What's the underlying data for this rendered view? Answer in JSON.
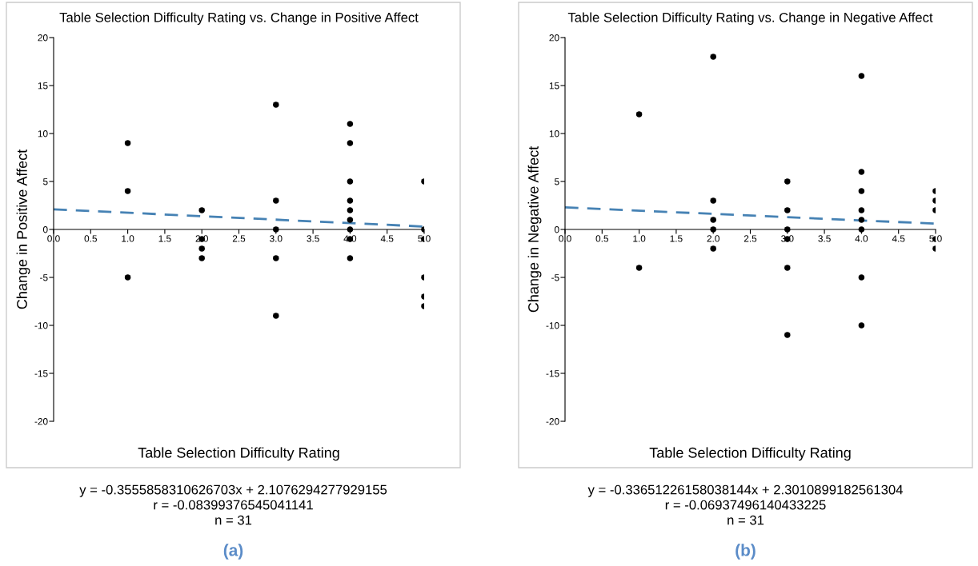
{
  "chart_data": [
    {
      "type": "scatter",
      "title": "Table Selection Difficulty Rating vs. Change in Positive Affect",
      "xlabel": "Table Selection Difficulty Rating",
      "ylabel": "Change in Positive Affect",
      "series": [
        {
          "marker": "circle",
          "color": "#000000",
          "x": [
            1,
            1,
            1,
            2,
            2,
            2,
            2,
            3,
            3,
            3,
            3,
            3,
            4,
            4,
            4,
            4,
            4,
            4,
            4,
            4,
            4,
            5,
            5,
            5,
            5,
            5,
            5
          ],
          "values": [
            9,
            4,
            -5,
            2,
            -1,
            -2,
            -3,
            13,
            3,
            0,
            -3,
            -9,
            11,
            9,
            5,
            3,
            2,
            1,
            0,
            -1,
            -3,
            5,
            0,
            -1,
            -5,
            -7,
            -8
          ]
        },
        {
          "type": "line",
          "color": "#4682b4",
          "line_style": "dashed",
          "x": [
            0,
            5
          ],
          "values": [
            2.1,
            0.3
          ]
        }
      ],
      "xlim": [
        0,
        5
      ],
      "ylim": [
        -20,
        20
      ],
      "xticks": [
        {
          "value": 0,
          "label": "0.0"
        },
        0.5,
        {
          "value": 1,
          "label": "1.0"
        },
        1.5,
        {
          "value": 2,
          "label": "2.0"
        },
        2.5,
        {
          "value": 3,
          "label": "3.0"
        },
        3.5,
        {
          "value": 4,
          "label": "4.0"
        },
        4.5,
        {
          "value": 5,
          "label": "5.0"
        }
      ],
      "yticks": [
        -20,
        -15,
        -10,
        -5,
        0,
        5,
        10,
        15,
        20
      ],
      "grid": false,
      "annotations": [
        "y = -0.3555858310626703x + 2.1076294277929155",
        "r = -0.08399376545041141",
        "n = 31",
        "(a)"
      ]
    },
    {
      "type": "scatter",
      "title": "Table Selection Difficulty Rating vs. Change in Negative Affect",
      "xlabel": "Table Selection Difficulty Rating",
      "ylabel": "Change in Negative Affect",
      "series": [
        {
          "marker": "circle",
          "color": "#000000",
          "x": [
            1,
            1,
            2,
            2,
            2,
            2,
            2,
            3,
            3,
            3,
            3,
            3,
            3,
            4,
            4,
            4,
            4,
            4,
            4,
            4,
            4,
            5,
            5,
            5,
            5,
            5
          ],
          "values": [
            12,
            -4,
            18,
            3,
            1,
            0,
            -2,
            5,
            2,
            0,
            -1,
            -4,
            -11,
            16,
            6,
            4,
            2,
            1,
            0,
            -5,
            -10,
            4,
            3,
            2,
            -1,
            -2
          ]
        },
        {
          "type": "line",
          "color": "#4682b4",
          "line_style": "dashed",
          "x": [
            0,
            5
          ],
          "values": [
            2.3,
            0.6
          ]
        }
      ],
      "xlim": [
        0,
        5
      ],
      "ylim": [
        -20,
        20
      ],
      "xticks": [
        {
          "value": 0,
          "label": "0.0"
        },
        0.5,
        {
          "value": 1,
          "label": "1.0"
        },
        1.5,
        {
          "value": 2,
          "label": "2.0"
        },
        2.5,
        {
          "value": 3,
          "label": "3.0"
        },
        3.5,
        {
          "value": 4,
          "label": "4.0"
        },
        4.5,
        {
          "value": 5,
          "label": "5.0"
        }
      ],
      "yticks": [
        -20,
        -15,
        -10,
        -5,
        0,
        5,
        10,
        15,
        20
      ],
      "grid": false,
      "annotations": [
        "y = -0.33651226158038144x + 2.3010899182561304",
        "r = -0.06937496140433225",
        "n = 31",
        "(b)"
      ]
    }
  ]
}
